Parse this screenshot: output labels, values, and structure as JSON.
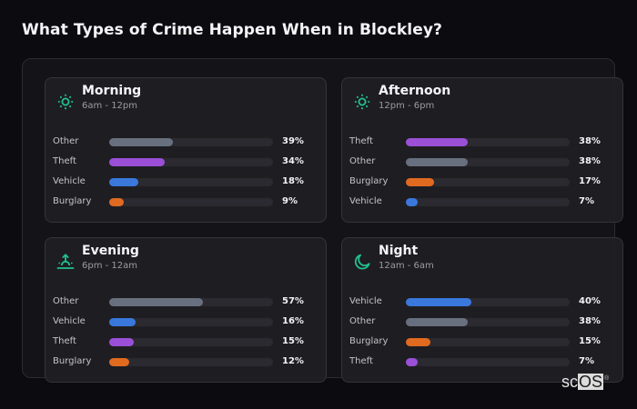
{
  "title": "What Types of Crime Happen When in Blockley?",
  "colors": {
    "Other": "#68707f",
    "Theft": "#9b4fd6",
    "Vehicle": "#3a78dc",
    "Burglary": "#e06a1f",
    "accent_icon": "#22c08e"
  },
  "cards": [
    {
      "title": "Morning",
      "subtitle": "6am - 12pm",
      "icon": "sun-icon",
      "rows": [
        {
          "label": "Other",
          "value": 39,
          "display": "39%"
        },
        {
          "label": "Theft",
          "value": 34,
          "display": "34%"
        },
        {
          "label": "Vehicle",
          "value": 18,
          "display": "18%"
        },
        {
          "label": "Burglary",
          "value": 9,
          "display": "9%"
        }
      ]
    },
    {
      "title": "Afternoon",
      "subtitle": "12pm - 6pm",
      "icon": "sun-icon",
      "rows": [
        {
          "label": "Theft",
          "value": 38,
          "display": "38%"
        },
        {
          "label": "Other",
          "value": 38,
          "display": "38%"
        },
        {
          "label": "Burglary",
          "value": 17,
          "display": "17%"
        },
        {
          "label": "Vehicle",
          "value": 7,
          "display": "7%"
        }
      ]
    },
    {
      "title": "Evening",
      "subtitle": "6pm - 12am",
      "icon": "sunset-icon",
      "rows": [
        {
          "label": "Other",
          "value": 57,
          "display": "57%"
        },
        {
          "label": "Vehicle",
          "value": 16,
          "display": "16%"
        },
        {
          "label": "Theft",
          "value": 15,
          "display": "15%"
        },
        {
          "label": "Burglary",
          "value": 12,
          "display": "12%"
        }
      ]
    },
    {
      "title": "Night",
      "subtitle": "12am - 6am",
      "icon": "moon-icon",
      "rows": [
        {
          "label": "Vehicle",
          "value": 40,
          "display": "40%"
        },
        {
          "label": "Other",
          "value": 38,
          "display": "38%"
        },
        {
          "label": "Burglary",
          "value": 15,
          "display": "15%"
        },
        {
          "label": "Theft",
          "value": 7,
          "display": "7%"
        }
      ]
    }
  ],
  "logo": {
    "part1": "sc",
    "part2": "OS",
    "mark": "®"
  },
  "chart_data": [
    {
      "type": "bar",
      "orientation": "horizontal",
      "title": "Morning (6am - 12pm)",
      "categories": [
        "Other",
        "Theft",
        "Vehicle",
        "Burglary"
      ],
      "values": [
        39,
        34,
        18,
        9
      ],
      "unit": "%",
      "xlim": [
        0,
        100
      ]
    },
    {
      "type": "bar",
      "orientation": "horizontal",
      "title": "Afternoon (12pm - 6pm)",
      "categories": [
        "Theft",
        "Other",
        "Burglary",
        "Vehicle"
      ],
      "values": [
        38,
        38,
        17,
        7
      ],
      "unit": "%",
      "xlim": [
        0,
        100
      ]
    },
    {
      "type": "bar",
      "orientation": "horizontal",
      "title": "Evening (6pm - 12am)",
      "categories": [
        "Other",
        "Vehicle",
        "Theft",
        "Burglary"
      ],
      "values": [
        57,
        16,
        15,
        12
      ],
      "unit": "%",
      "xlim": [
        0,
        100
      ]
    },
    {
      "type": "bar",
      "orientation": "horizontal",
      "title": "Night (12am - 6am)",
      "categories": [
        "Vehicle",
        "Other",
        "Burglary",
        "Theft"
      ],
      "values": [
        40,
        38,
        15,
        7
      ],
      "unit": "%",
      "xlim": [
        0,
        100
      ]
    }
  ]
}
